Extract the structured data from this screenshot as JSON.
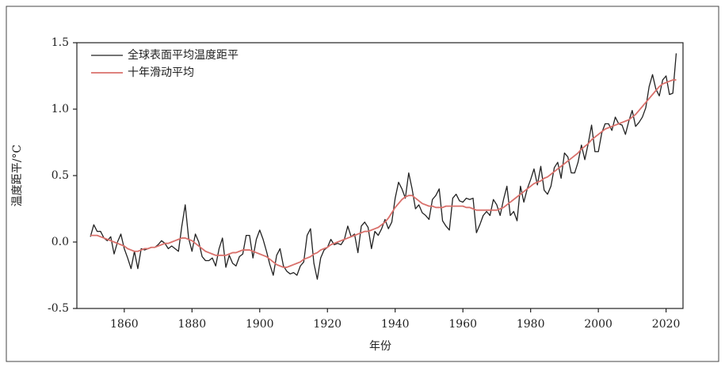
{
  "chart_data": {
    "type": "line",
    "x_label": "年份",
    "y_label": "温度距平/°C",
    "x": [
      1850,
      1851,
      1852,
      1853,
      1854,
      1855,
      1856,
      1857,
      1858,
      1859,
      1860,
      1861,
      1862,
      1863,
      1864,
      1865,
      1866,
      1867,
      1868,
      1869,
      1870,
      1871,
      1872,
      1873,
      1874,
      1875,
      1876,
      1877,
      1878,
      1879,
      1880,
      1881,
      1882,
      1883,
      1884,
      1885,
      1886,
      1887,
      1888,
      1889,
      1890,
      1891,
      1892,
      1893,
      1894,
      1895,
      1896,
      1897,
      1898,
      1899,
      1900,
      1901,
      1902,
      1903,
      1904,
      1905,
      1906,
      1907,
      1908,
      1909,
      1910,
      1911,
      1912,
      1913,
      1914,
      1915,
      1916,
      1917,
      1918,
      1919,
      1920,
      1921,
      1922,
      1923,
      1924,
      1925,
      1926,
      1927,
      1928,
      1929,
      1930,
      1931,
      1932,
      1933,
      1934,
      1935,
      1936,
      1937,
      1938,
      1939,
      1940,
      1941,
      1942,
      1943,
      1944,
      1945,
      1946,
      1947,
      1948,
      1949,
      1950,
      1951,
      1952,
      1953,
      1954,
      1955,
      1956,
      1957,
      1958,
      1959,
      1960,
      1961,
      1962,
      1963,
      1964,
      1965,
      1966,
      1967,
      1968,
      1969,
      1970,
      1971,
      1972,
      1973,
      1974,
      1975,
      1976,
      1977,
      1978,
      1979,
      1980,
      1981,
      1982,
      1983,
      1984,
      1985,
      1986,
      1987,
      1988,
      1989,
      1990,
      1991,
      1992,
      1993,
      1994,
      1995,
      1996,
      1997,
      1998,
      1999,
      2000,
      2001,
      2002,
      2003,
      2004,
      2005,
      2006,
      2007,
      2008,
      2009,
      2010,
      2011,
      2012,
      2013,
      2014,
      2015,
      2016,
      2017,
      2018,
      2019,
      2020,
      2021,
      2022,
      2023
    ],
    "series": [
      {
        "name": "全球表面平均温度距平",
        "color": "#222222",
        "width": 1.3,
        "values": [
          0.04,
          0.13,
          0.08,
          0.08,
          0.03,
          0.01,
          0.04,
          -0.09,
          0.0,
          0.06,
          -0.05,
          -0.12,
          -0.2,
          -0.07,
          -0.2,
          -0.05,
          -0.06,
          -0.05,
          -0.04,
          -0.04,
          -0.02,
          0.01,
          -0.01,
          -0.05,
          -0.03,
          -0.05,
          -0.07,
          0.12,
          0.28,
          0.03,
          -0.07,
          0.06,
          0.0,
          -0.11,
          -0.14,
          -0.14,
          -0.12,
          -0.18,
          -0.05,
          0.03,
          -0.19,
          -0.1,
          -0.16,
          -0.18,
          -0.11,
          -0.09,
          0.05,
          0.05,
          -0.12,
          0.02,
          0.09,
          0.02,
          -0.07,
          -0.17,
          -0.25,
          -0.1,
          -0.05,
          -0.18,
          -0.22,
          -0.24,
          -0.23,
          -0.25,
          -0.18,
          -0.15,
          0.05,
          0.1,
          -0.16,
          -0.28,
          -0.12,
          -0.06,
          -0.04,
          0.02,
          -0.02,
          -0.01,
          -0.02,
          0.02,
          0.12,
          0.04,
          0.06,
          -0.08,
          0.12,
          0.15,
          0.11,
          -0.05,
          0.08,
          0.05,
          0.1,
          0.17,
          0.1,
          0.15,
          0.33,
          0.45,
          0.4,
          0.33,
          0.52,
          0.4,
          0.25,
          0.28,
          0.22,
          0.2,
          0.17,
          0.32,
          0.35,
          0.4,
          0.16,
          0.12,
          0.09,
          0.33,
          0.36,
          0.31,
          0.3,
          0.33,
          0.32,
          0.33,
          0.07,
          0.13,
          0.2,
          0.23,
          0.2,
          0.32,
          0.28,
          0.2,
          0.32,
          0.42,
          0.2,
          0.23,
          0.16,
          0.42,
          0.3,
          0.4,
          0.47,
          0.55,
          0.43,
          0.57,
          0.39,
          0.36,
          0.42,
          0.56,
          0.6,
          0.48,
          0.67,
          0.64,
          0.52,
          0.52,
          0.6,
          0.73,
          0.62,
          0.74,
          0.88,
          0.68,
          0.68,
          0.82,
          0.89,
          0.89,
          0.84,
          0.94,
          0.89,
          0.88,
          0.81,
          0.91,
          0.99,
          0.87,
          0.9,
          0.94,
          1.01,
          1.17,
          1.26,
          1.15,
          1.1,
          1.22,
          1.25,
          1.11,
          1.12,
          1.42
        ]
      },
      {
        "name": "十年滑动平均",
        "color": "#d9706b",
        "width": 1.8,
        "values": [
          0.05,
          0.05,
          0.05,
          0.04,
          0.03,
          0.02,
          0.01,
          0.0,
          -0.01,
          -0.02,
          -0.03,
          -0.05,
          -0.06,
          -0.07,
          -0.07,
          -0.06,
          -0.05,
          -0.05,
          -0.04,
          -0.04,
          -0.03,
          -0.02,
          -0.01,
          -0.01,
          0.0,
          0.01,
          0.02,
          0.03,
          0.03,
          0.02,
          0.01,
          -0.01,
          -0.03,
          -0.05,
          -0.07,
          -0.08,
          -0.09,
          -0.1,
          -0.1,
          -0.1,
          -0.1,
          -0.09,
          -0.08,
          -0.08,
          -0.07,
          -0.06,
          -0.06,
          -0.06,
          -0.07,
          -0.08,
          -0.09,
          -0.1,
          -0.11,
          -0.13,
          -0.15,
          -0.17,
          -0.18,
          -0.19,
          -0.19,
          -0.18,
          -0.17,
          -0.16,
          -0.15,
          -0.13,
          -0.12,
          -0.11,
          -0.09,
          -0.08,
          -0.06,
          -0.05,
          -0.04,
          -0.02,
          -0.01,
          0.0,
          0.01,
          0.02,
          0.03,
          0.04,
          0.05,
          0.06,
          0.07,
          0.08,
          0.08,
          0.09,
          0.1,
          0.11,
          0.13,
          0.15,
          0.18,
          0.22,
          0.26,
          0.29,
          0.32,
          0.34,
          0.35,
          0.35,
          0.33,
          0.31,
          0.29,
          0.28,
          0.27,
          0.27,
          0.26,
          0.26,
          0.26,
          0.27,
          0.27,
          0.27,
          0.27,
          0.27,
          0.27,
          0.26,
          0.26,
          0.25,
          0.24,
          0.24,
          0.24,
          0.24,
          0.24,
          0.24,
          0.24,
          0.25,
          0.26,
          0.28,
          0.3,
          0.32,
          0.34,
          0.36,
          0.38,
          0.4,
          0.42,
          0.44,
          0.45,
          0.46,
          0.48,
          0.49,
          0.51,
          0.53,
          0.55,
          0.57,
          0.59,
          0.61,
          0.63,
          0.65,
          0.67,
          0.7,
          0.72,
          0.74,
          0.77,
          0.79,
          0.81,
          0.83,
          0.85,
          0.86,
          0.87,
          0.88,
          0.89,
          0.9,
          0.91,
          0.92,
          0.94,
          0.96,
          0.99,
          1.02,
          1.05,
          1.08,
          1.11,
          1.14,
          1.17,
          1.19,
          1.2,
          1.21,
          1.22,
          1.22
        ]
      }
    ],
    "xlim": [
      1846,
      2025
    ],
    "xticks": [
      1860,
      1880,
      1900,
      1920,
      1940,
      1960,
      1980,
      2000,
      2020
    ],
    "ylim": [
      -0.5,
      1.5
    ],
    "yticks": [
      -0.5,
      {
        "value": 0,
        "label": "0.0"
      },
      0.5,
      {
        "value": 1,
        "label": "1.0"
      },
      1.5
    ],
    "legend": "upper left"
  }
}
